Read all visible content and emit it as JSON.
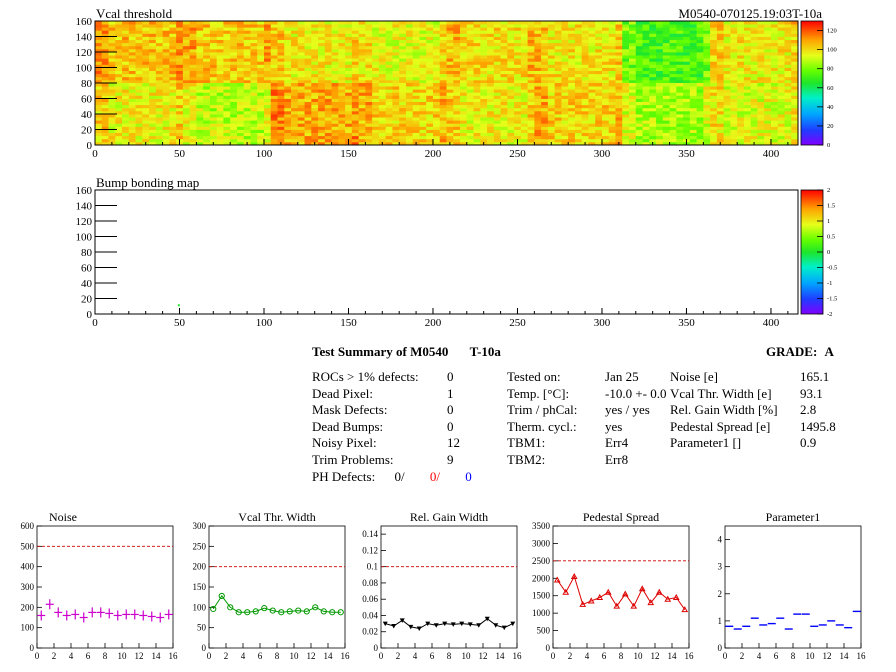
{
  "header": {
    "map1_title": "Vcal threshold",
    "module_id": "M0540-070125.19:03T-10a",
    "map2_title": "Bump bonding map"
  },
  "colors": {
    "axis": "#000000",
    "noise": "#cc00cc",
    "vcal": "#009900",
    "gain": "#000000",
    "pedestal": "#dd0000",
    "param": "#0000ff",
    "limit": "#cc0000"
  },
  "summary": {
    "title": "Test Summary of M0540",
    "temp_tag": "T-10a",
    "grade_label": "GRADE:",
    "grade": "A",
    "left_rows": [
      {
        "label": "ROCs > 1% defects:",
        "value": "0"
      },
      {
        "label": "Dead Pixel:",
        "value": "1"
      },
      {
        "label": "Mask Defects:",
        "value": "0"
      },
      {
        "label": "Dead Bumps:",
        "value": "0"
      },
      {
        "label": "Noisy Pixel:",
        "value": "12"
      },
      {
        "label": "Trim Problems:",
        "value": "9"
      }
    ],
    "ph_label": "PH Defects:",
    "ph_values": [
      "0/",
      "0/",
      "0"
    ],
    "mid_rows": [
      {
        "label": "Tested on:",
        "value": "Jan 25"
      },
      {
        "label": "Temp. [°C]:",
        "value": "-10.0 +- 0.0"
      },
      {
        "label": "Trim / phCal:",
        "value": "yes / yes"
      },
      {
        "label": "Therm. cycl.:",
        "value": "yes"
      },
      {
        "label": "TBM1:",
        "value": "Err4"
      },
      {
        "label": "TBM2:",
        "value": "Err8"
      }
    ],
    "right_rows": [
      {
        "label": "Noise [e]",
        "value": "165.1"
      },
      {
        "label": "Vcal Thr. Width [e]",
        "value": "93.1"
      },
      {
        "label": "Rel. Gain Width [%]",
        "value": "2.8"
      },
      {
        "label": "Pedestal Spread [e]",
        "value": "1495.8"
      },
      {
        "label": "Parameter1 []",
        "value": "0.9"
      }
    ]
  },
  "chart_data": [
    {
      "type": "heatmap",
      "title": "Vcal threshold",
      "xlim": [
        0,
        416
      ],
      "ylim": [
        0,
        160
      ],
      "x_ticks": [
        "0",
        "50",
        "100",
        "150",
        "200",
        "250",
        "300",
        "350",
        "400"
      ],
      "y_ticks": [
        "0",
        "20",
        "40",
        "60",
        "80",
        "100",
        "120",
        "140",
        "160"
      ],
      "zlim": [
        0,
        130
      ],
      "z_ticks": [
        "0",
        "20",
        "40",
        "60",
        "80",
        "100",
        "120"
      ],
      "roc_means_top": [
        104,
        108,
        103,
        85,
        97,
        96,
        94,
        80,
        100,
        93,
        98,
        98,
        73,
        72,
        97,
        98
      ],
      "roc_means_bottom": [
        96,
        93,
        88,
        90,
        107,
        102,
        101,
        96,
        96,
        93,
        101,
        90,
        86,
        89,
        93,
        96
      ]
    },
    {
      "type": "heatmap",
      "title": "Bump bonding map",
      "xlim": [
        0,
        416
      ],
      "ylim": [
        0,
        160
      ],
      "x_ticks": [
        "0",
        "50",
        "100",
        "150",
        "200",
        "250",
        "300",
        "350",
        "400"
      ],
      "y_ticks": [
        "0",
        "20",
        "40",
        "60",
        "80",
        "100",
        "120",
        "140",
        "160"
      ],
      "zlim": [
        -2,
        2
      ],
      "z_ticks": [
        "-2",
        "-1.5",
        "-1",
        "-0.5",
        "0",
        "0.5",
        "1",
        "1.5",
        "2"
      ],
      "points": [
        {
          "x": 49,
          "y": 10
        }
      ]
    },
    {
      "type": "scatter",
      "title": "Noise",
      "x": [
        0,
        1,
        2,
        3,
        4,
        5,
        6,
        7,
        8,
        9,
        10,
        11,
        12,
        13,
        14,
        15
      ],
      "values": [
        160,
        215,
        175,
        160,
        165,
        150,
        175,
        175,
        170,
        160,
        165,
        165,
        160,
        155,
        150,
        165
      ],
      "ylim": [
        0,
        600
      ],
      "limit": 500,
      "y_ticks": [
        "0",
        "100",
        "200",
        "300",
        "400",
        "500",
        "600"
      ],
      "x_ticks": [
        "0",
        "2",
        "4",
        "6",
        "8",
        "10",
        "12",
        "14",
        "16"
      ]
    },
    {
      "type": "line",
      "title": "Vcal Thr. Width",
      "x": [
        0,
        1,
        2,
        3,
        4,
        5,
        6,
        7,
        8,
        9,
        10,
        11,
        12,
        13,
        14,
        15
      ],
      "values": [
        96,
        128,
        100,
        88,
        88,
        90,
        98,
        92,
        88,
        90,
        92,
        90,
        100,
        90,
        88,
        88
      ],
      "ylim": [
        0,
        300
      ],
      "limit": 200,
      "y_ticks": [
        "0",
        "50",
        "100",
        "150",
        "200",
        "250",
        "300"
      ],
      "x_ticks": [
        "0",
        "2",
        "4",
        "6",
        "8",
        "10",
        "12",
        "14",
        "16"
      ]
    },
    {
      "type": "line",
      "title": "Rel. Gain Width",
      "x": [
        0,
        1,
        2,
        3,
        4,
        5,
        6,
        7,
        8,
        9,
        10,
        11,
        12,
        13,
        14,
        15
      ],
      "values": [
        0.03,
        0.027,
        0.034,
        0.026,
        0.024,
        0.03,
        0.028,
        0.03,
        0.029,
        0.03,
        0.029,
        0.028,
        0.036,
        0.028,
        0.025,
        0.03
      ],
      "ylim": [
        0,
        0.15
      ],
      "limit": 0.1,
      "y_ticks": [
        "0",
        "0.02",
        "0.04",
        "0.06",
        "0.08",
        "0.1",
        "0.12",
        "0.14"
      ],
      "x_ticks": [
        "0",
        "2",
        "4",
        "6",
        "8",
        "10",
        "12",
        "14",
        "16"
      ]
    },
    {
      "type": "line",
      "title": "Pedestal Spread",
      "x": [
        0,
        1,
        2,
        3,
        4,
        5,
        6,
        7,
        8,
        9,
        10,
        11,
        12,
        13,
        14,
        15
      ],
      "values": [
        1950,
        1600,
        2050,
        1250,
        1350,
        1450,
        1600,
        1200,
        1550,
        1200,
        1700,
        1300,
        1600,
        1400,
        1450,
        1100
      ],
      "ylim": [
        0,
        3500
      ],
      "limit": 2500,
      "y_ticks": [
        "0",
        "500",
        "1000",
        "1500",
        "2000",
        "2500",
        "3000",
        "3500"
      ],
      "x_ticks": [
        "0",
        "2",
        "4",
        "6",
        "8",
        "10",
        "12",
        "14",
        "16"
      ]
    },
    {
      "type": "scatter",
      "title": "Parameter1",
      "x": [
        0,
        1,
        2,
        3,
        4,
        5,
        6,
        7,
        8,
        9,
        10,
        11,
        12,
        13,
        14,
        15
      ],
      "values": [
        0.8,
        0.7,
        0.8,
        1.1,
        0.85,
        0.9,
        1.1,
        0.7,
        1.25,
        1.25,
        0.8,
        0.85,
        1.0,
        0.85,
        0.75,
        1.35
      ],
      "ylim": [
        0,
        4.5
      ],
      "limit": null,
      "y_ticks": [
        "0",
        "1",
        "2",
        "3",
        "4"
      ],
      "x_ticks": [
        "0",
        "2",
        "4",
        "6",
        "8",
        "10",
        "12",
        "14",
        "16"
      ]
    }
  ]
}
